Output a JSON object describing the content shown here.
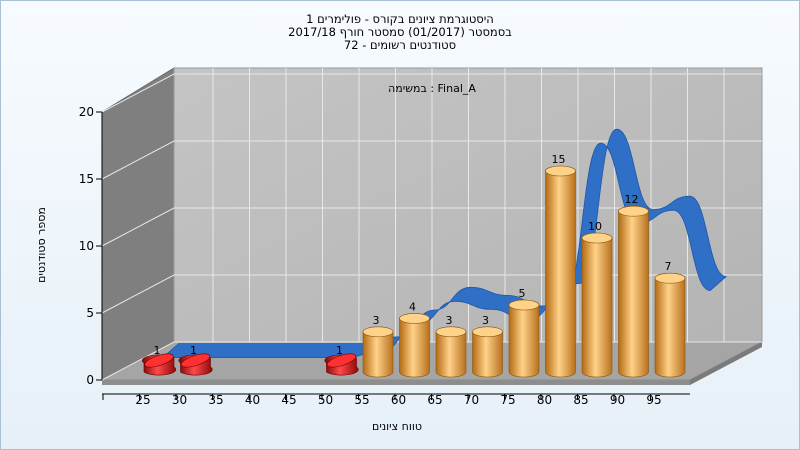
{
  "chart_data": {
    "type": "bar",
    "title": [
      "היסטוגרמת ציונים בקורס - פולימרים 1",
      "בסמסטר  (01/2017)  סמסטר חורף 2017/18",
      "סטודנטים רשומים - 72"
    ],
    "annotation": "במשימה : Final_A",
    "xlabel": "טווח ציונים",
    "ylabel": "מספר סטודנטים",
    "ylim": [
      0,
      20
    ],
    "y_ticks": [
      0,
      5,
      10,
      15,
      20
    ],
    "x_ticks": [
      25,
      30,
      35,
      40,
      45,
      50,
      55,
      60,
      65,
      70,
      75,
      80,
      85,
      90,
      95
    ],
    "series": [
      {
        "type": "bar",
        "values": [
          {
            "x": 25,
            "value": 1,
            "color": "#d81818"
          },
          {
            "x": 30,
            "value": 1,
            "color": "#d81818"
          },
          {
            "x": 50,
            "value": 1,
            "color": "#d81818"
          },
          {
            "x": 55,
            "value": 3,
            "color": "#e6a24a"
          },
          {
            "x": 60,
            "value": 4,
            "color": "#e6a24a"
          },
          {
            "x": 65,
            "value": 3,
            "color": "#e6a24a"
          },
          {
            "x": 70,
            "value": 3,
            "color": "#e6a24a"
          },
          {
            "x": 75,
            "value": 5,
            "color": "#e6a24a"
          },
          {
            "x": 80,
            "value": 15,
            "color": "#e6a24a"
          },
          {
            "x": 85,
            "value": 10,
            "color": "#e6a24a"
          },
          {
            "x": 90,
            "value": 12,
            "color": "#e6a24a"
          },
          {
            "x": 95,
            "value": 7,
            "color": "#e6a24a"
          }
        ]
      },
      {
        "type": "ribbon",
        "color": "#2f6fc6",
        "values": [
          {
            "x": 25,
            "value": 0
          },
          {
            "x": 35,
            "value": 0
          },
          {
            "x": 40,
            "value": 0
          },
          {
            "x": 45,
            "value": 0
          },
          {
            "x": 50,
            "value": 0
          },
          {
            "x": 55,
            "value": 0.5
          },
          {
            "x": 60,
            "value": 2.5
          },
          {
            "x": 65,
            "value": 4.2
          },
          {
            "x": 70,
            "value": 3.6
          },
          {
            "x": 75,
            "value": 2.8
          },
          {
            "x": 80,
            "value": 4.5
          },
          {
            "x": 85,
            "value": 16
          },
          {
            "x": 90,
            "value": 10
          },
          {
            "x": 95,
            "value": 11
          },
          {
            "x": 100,
            "value": 5
          }
        ]
      }
    ],
    "grid": true
  }
}
